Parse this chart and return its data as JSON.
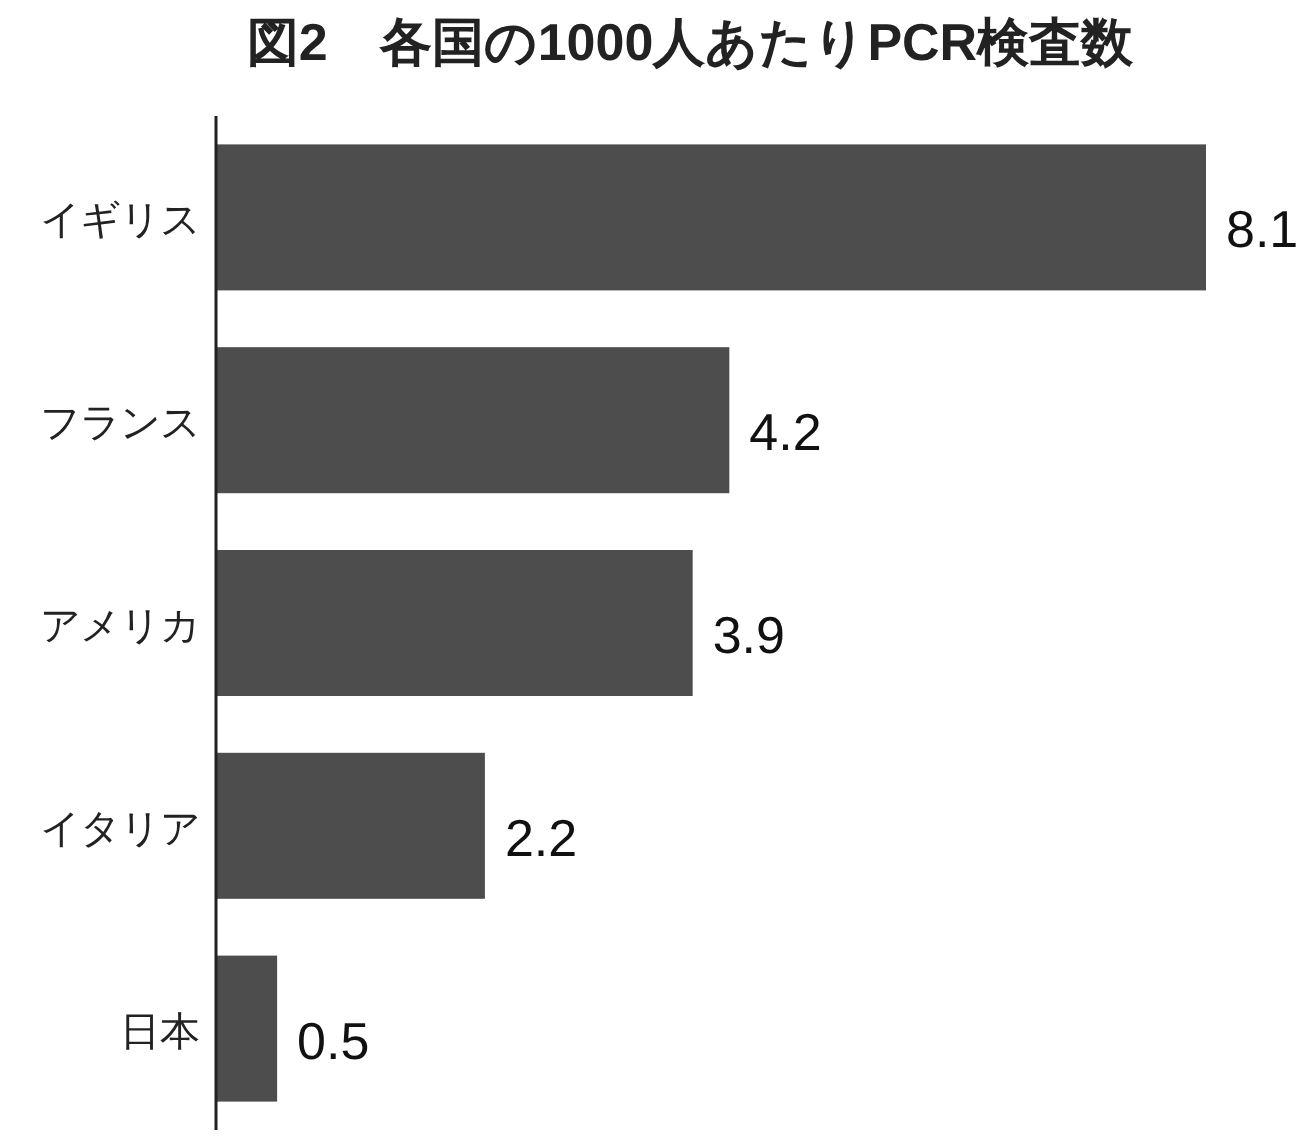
{
  "chart_data": {
    "type": "bar",
    "orientation": "horizontal",
    "title": "図2　各国の1000人あたりPCR検査数",
    "categories": [
      "イギリス",
      "フランス",
      "アメリカ",
      "イタリア",
      "日本"
    ],
    "values": [
      8.1,
      4.2,
      3.9,
      2.2,
      0.5
    ],
    "color": "#4d4d4d",
    "data_labels": true
  }
}
